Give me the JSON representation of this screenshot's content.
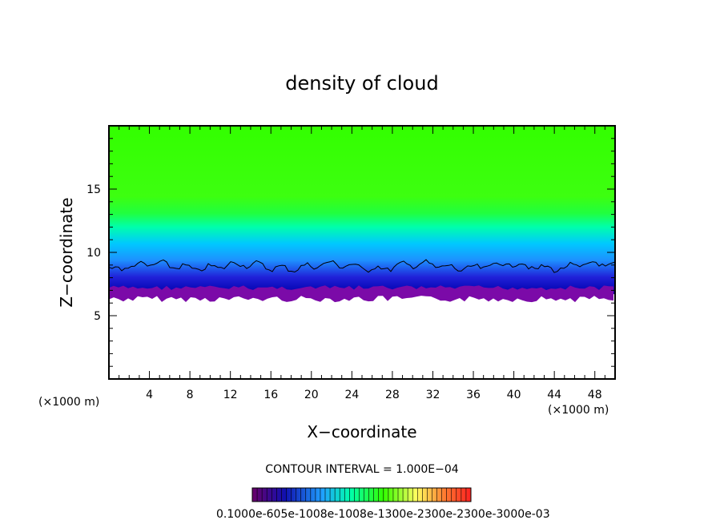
{
  "chart_data": {
    "type": "heatmap",
    "title": "density of cloud",
    "xlabel": "X−coordinate",
    "ylabel": "Z−coordinate",
    "x_unit": "(×1000 m)",
    "y_unit": "(×1000 m)",
    "xlim": [
      0,
      50
    ],
    "ylim": [
      0,
      20
    ],
    "x_ticks": [
      4,
      8,
      12,
      16,
      20,
      24,
      28,
      32,
      36,
      40,
      44,
      48
    ],
    "y_ticks": [
      5,
      10,
      15
    ],
    "x_tick_labels": [
      "4",
      "8",
      "12",
      "16",
      "20",
      "24",
      "28",
      "32",
      "36",
      "40",
      "44",
      "48"
    ],
    "y_tick_labels": [
      "5",
      "10",
      "15"
    ],
    "cloud_base_z": 6.7,
    "contour_z": 8.9,
    "contour_interval": "CONTOUR INTERVAL = 1.000E−04",
    "colorbar_labels": "0.1000e-605e-1008e-1008e-1300e-2300e-2300e-3000e-03",
    "colors": {
      "upper": "#33ff00",
      "mid": "#00ffaa",
      "lower": "#1e90ff",
      "base": "#0000aa",
      "bottom": "#7b0aa8",
      "contour": "#000000"
    }
  }
}
